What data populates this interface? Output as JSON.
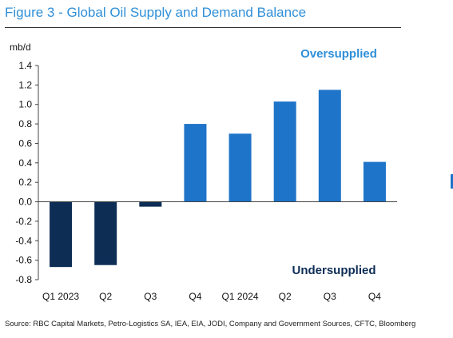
{
  "figure": {
    "title": "Figure 3 - Global Oil Supply and Demand Balance",
    "source": "Source: RBC Capital Markets, Petro-Logistics SA, IEA, EIA, JODI, Company and Government Sources, CFTC, Bloomberg"
  },
  "chart_data": {
    "type": "bar",
    "title": "",
    "ylabel": "mb/d",
    "xlabel": "",
    "categories": [
      "Q1 2023",
      "Q2",
      "Q3",
      "Q4",
      "Q1 2024",
      "Q2",
      "Q3",
      "Q4"
    ],
    "values": [
      -0.67,
      -0.65,
      -0.05,
      0.8,
      0.7,
      1.03,
      1.15,
      0.41
    ],
    "ylim": [
      -0.8,
      1.4
    ],
    "yticks": [
      "1.4",
      "1.2",
      "1.0",
      "0.8",
      "0.6",
      "0.4",
      "0.2",
      "0.0",
      "-0.2",
      "-0.4",
      "-0.6",
      "-0.8"
    ],
    "grid": false,
    "legend": "none",
    "annotations": {
      "top": "Oversupplied",
      "bottom": "Undersupplied"
    },
    "colors": {
      "negative": "#0d2d55",
      "positive": "#1e74c9",
      "oversupplied_text": "#2f8fd8",
      "undersupplied_text": "#0d2d55"
    }
  }
}
